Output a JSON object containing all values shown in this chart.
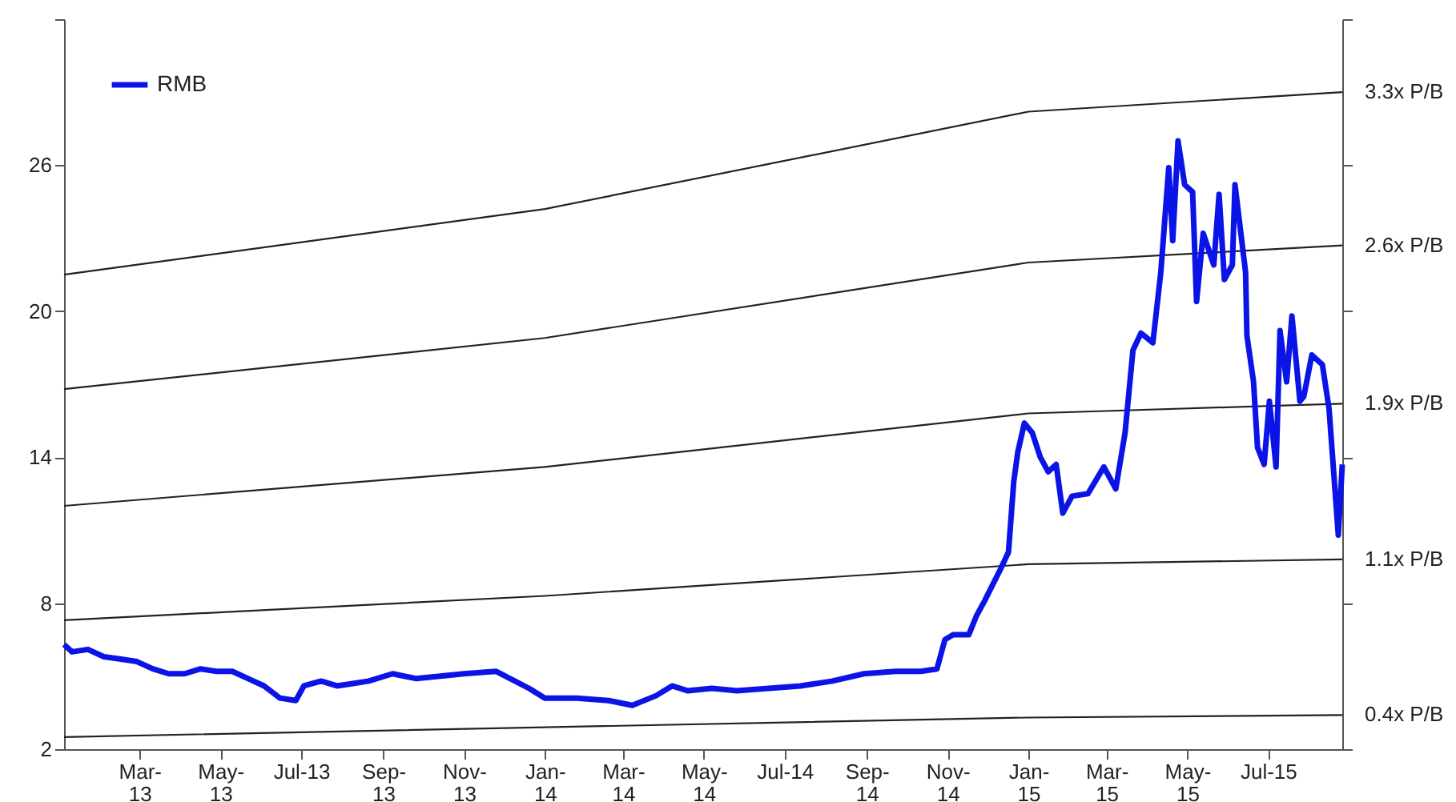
{
  "chart_data": {
    "type": "line",
    "xlim": [
      "2013-01-03",
      "2015-08-26"
    ],
    "xticks": [
      {
        "value": "2013-03-01",
        "label": "Mar-\n13"
      },
      {
        "value": "2013-05-01",
        "label": "May-\n13"
      },
      {
        "value": "2013-07-01",
        "label": "Jul-13"
      },
      {
        "value": "2013-09-01",
        "label": "Sep-\n13"
      },
      {
        "value": "2013-11-01",
        "label": "Nov-\n13"
      },
      {
        "value": "2014-01-01",
        "label": "Jan-\n14"
      },
      {
        "value": "2014-03-01",
        "label": "Mar-\n14"
      },
      {
        "value": "2014-05-01",
        "label": "May-\n14"
      },
      {
        "value": "2014-07-01",
        "label": "Jul-14"
      },
      {
        "value": "2014-09-01",
        "label": "Sep-\n14"
      },
      {
        "value": "2014-11-01",
        "label": "Nov-\n14"
      },
      {
        "value": "2015-01-01",
        "label": "Jan-\n15"
      },
      {
        "value": "2015-03-01",
        "label": "Mar-\n15"
      },
      {
        "value": "2015-05-01",
        "label": "May-\n15"
      },
      {
        "value": "2015-07-01",
        "label": "Jul-15"
      }
    ],
    "ylim": [
      2,
      32
    ],
    "yticks": [
      2,
      8,
      14,
      20,
      26,
      {
        "value": 32,
        "label": null
      }
    ],
    "grid": false,
    "legend": "top left",
    "series": [
      {
        "name": "RMB",
        "color": "#0a14e6",
        "x": [
          "2013-01-03",
          "2013-01-09",
          "2013-01-21",
          "2013-02-02",
          "2013-02-15",
          "2013-02-27",
          "2013-03-11",
          "2013-03-23",
          "2013-04-04",
          "2013-04-16",
          "2013-04-28",
          "2013-05-10",
          "2013-05-22",
          "2013-06-03",
          "2013-06-15",
          "2013-06-27",
          "2013-07-03",
          "2013-07-16",
          "2013-07-28",
          "2013-08-09",
          "2013-08-21",
          "2013-09-08",
          "2013-09-26",
          "2013-10-14",
          "2013-11-01",
          "2013-11-25",
          "2013-12-20",
          "2014-01-01",
          "2014-01-25",
          "2014-02-18",
          "2014-03-08",
          "2014-03-26",
          "2014-04-07",
          "2014-04-19",
          "2014-05-07",
          "2014-05-26",
          "2014-06-19",
          "2014-07-13",
          "2014-08-06",
          "2014-08-30",
          "2014-09-23",
          "2014-10-12",
          "2014-10-24",
          "2014-10-30",
          "2014-11-05",
          "2014-11-17",
          "2014-11-23",
          "2014-11-29",
          "2014-12-11",
          "2014-12-17",
          "2014-12-21",
          "2014-12-24",
          "2014-12-29",
          "2015-01-04",
          "2015-01-10",
          "2015-01-16",
          "2015-01-22",
          "2015-01-27",
          "2015-02-03",
          "2015-02-15",
          "2015-02-27",
          "2015-03-08",
          "2015-03-15",
          "2015-03-21",
          "2015-03-27",
          "2015-04-05",
          "2015-04-11",
          "2015-04-17",
          "2015-04-20",
          "2015-04-24",
          "2015-04-29",
          "2015-05-05",
          "2015-05-08",
          "2015-05-13",
          "2015-05-21",
          "2015-05-25",
          "2015-05-29",
          "2015-06-04",
          "2015-06-06",
          "2015-06-14",
          "2015-06-15",
          "2015-06-20",
          "2015-06-23",
          "2015-06-28",
          "2015-07-02",
          "2015-07-07",
          "2015-07-10",
          "2015-07-15",
          "2015-07-19",
          "2015-07-25",
          "2015-07-28",
          "2015-08-03",
          "2015-08-11",
          "2015-08-16",
          "2015-08-23",
          "2015-08-26"
        ],
        "values": [
          6.3,
          6.0,
          6.1,
          5.8,
          5.7,
          5.6,
          5.3,
          5.1,
          5.1,
          5.3,
          5.2,
          5.2,
          4.9,
          4.6,
          4.1,
          4.0,
          4.6,
          4.8,
          4.6,
          4.7,
          4.8,
          5.1,
          4.9,
          5.0,
          5.1,
          5.2,
          4.5,
          4.1,
          4.1,
          4.0,
          3.8,
          4.2,
          4.6,
          4.4,
          4.5,
          4.4,
          4.5,
          4.6,
          4.8,
          5.1,
          5.2,
          5.2,
          5.3,
          6.5,
          6.7,
          6.7,
          7.5,
          8.1,
          9.4,
          10.1,
          13.0,
          14.2,
          15.4,
          15.0,
          14.0,
          13.4,
          13.7,
          11.7,
          12.4,
          12.5,
          13.6,
          12.7,
          15.0,
          18.4,
          19.1,
          18.7,
          21.6,
          25.9,
          22.9,
          27.0,
          25.2,
          24.9,
          20.4,
          23.2,
          21.9,
          24.8,
          21.3,
          21.9,
          25.2,
          21.6,
          19.0,
          17.1,
          14.4,
          13.7,
          16.3,
          13.6,
          19.2,
          17.1,
          19.8,
          16.3,
          16.5,
          18.2,
          17.8,
          16.0,
          10.8,
          13.7
        ]
      },
      {
        "name": "3.3x P/B",
        "color": "#222222",
        "x": [
          "2013-01-03",
          "2014-01-01",
          "2015-01-01",
          "2015-08-26"
        ],
        "values": [
          21.5,
          24.2,
          28.2,
          29.0
        ]
      },
      {
        "name": "2.6x P/B",
        "color": "#222222",
        "x": [
          "2013-01-03",
          "2014-01-01",
          "2015-01-01",
          "2015-08-26"
        ],
        "values": [
          16.8,
          18.9,
          22.0,
          22.7
        ]
      },
      {
        "name": "1.9x P/B",
        "color": "#222222",
        "x": [
          "2013-01-03",
          "2014-01-01",
          "2015-01-01",
          "2015-08-26"
        ],
        "values": [
          12.0,
          13.6,
          15.8,
          16.2
        ]
      },
      {
        "name": "1.1x P/B",
        "color": "#222222",
        "x": [
          "2013-01-03",
          "2014-01-01",
          "2015-01-01",
          "2015-08-26"
        ],
        "values": [
          7.3,
          8.3,
          9.6,
          9.8
        ]
      },
      {
        "name": "0.4x P/B",
        "color": "#222222",
        "x": [
          "2013-01-03",
          "2014-01-01",
          "2015-01-01",
          "2015-08-26"
        ],
        "values": [
          2.5,
          2.9,
          3.3,
          3.4
        ]
      }
    ]
  }
}
